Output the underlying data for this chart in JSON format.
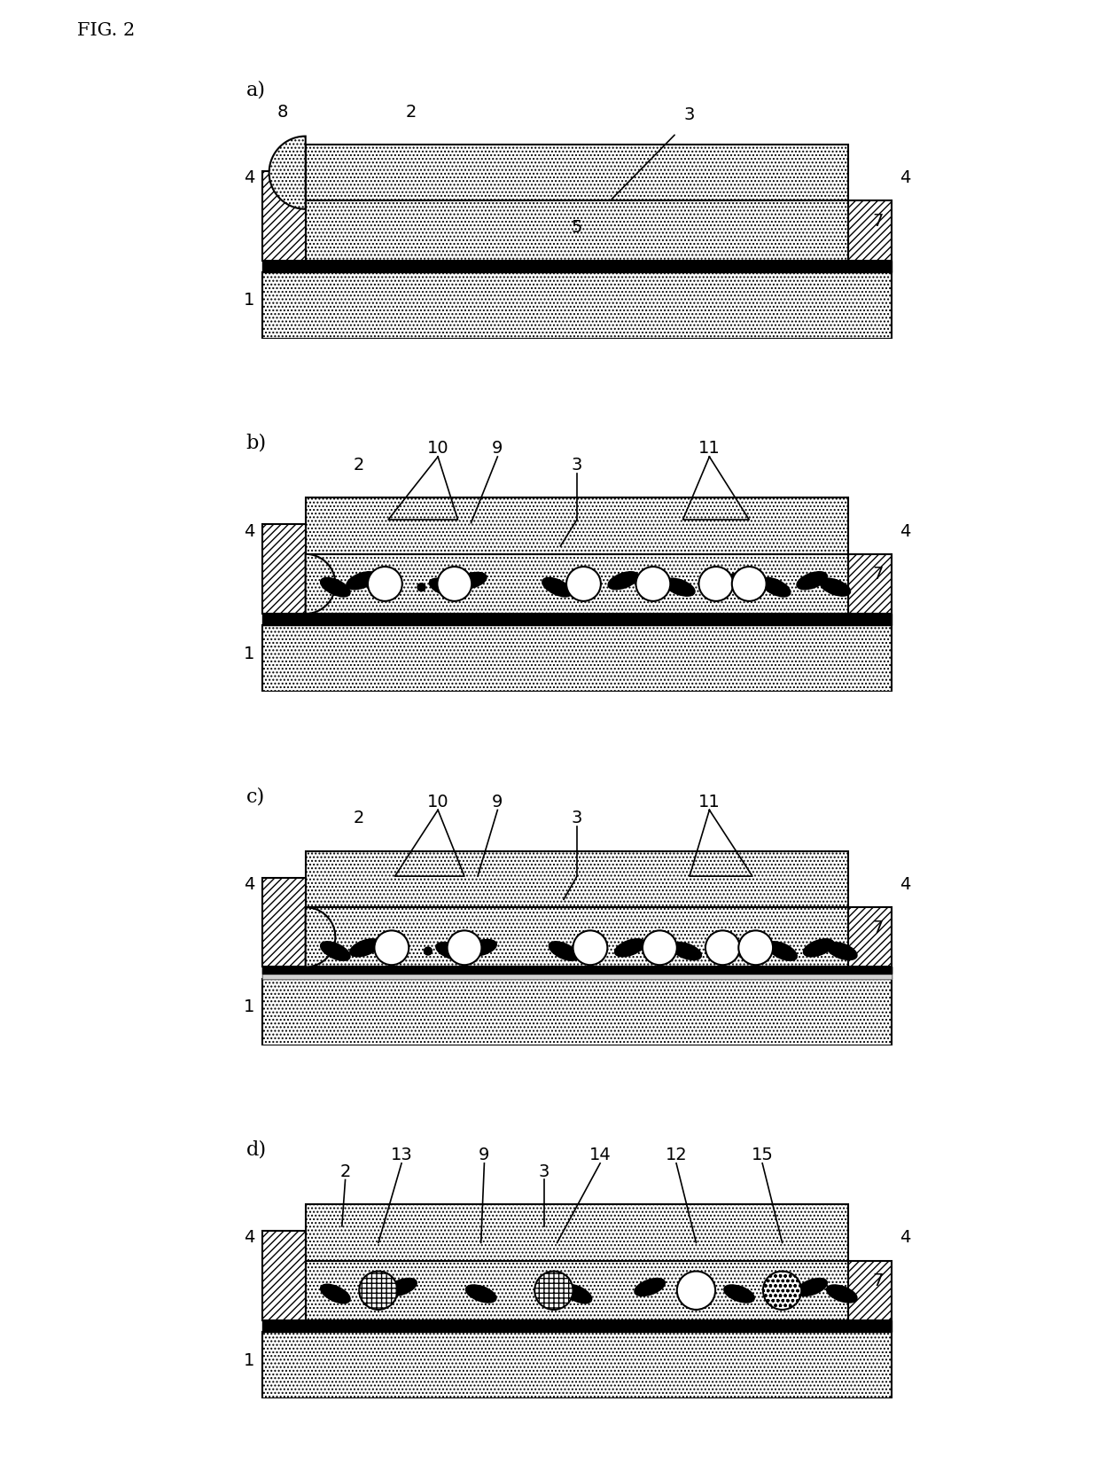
{
  "fig_title": "FIG. 2",
  "bg": "#ffffff",
  "gray_dot": "#cccccc",
  "panel_labels": [
    "a)",
    "b)",
    "c)",
    "d)"
  ],
  "xlim": [
    0,
    10
  ],
  "ylim": [
    0,
    4.0
  ],
  "substrate_hatch": "....",
  "wall_hatch": "////",
  "top_hatch": "....",
  "channel_color": "#ffffff"
}
